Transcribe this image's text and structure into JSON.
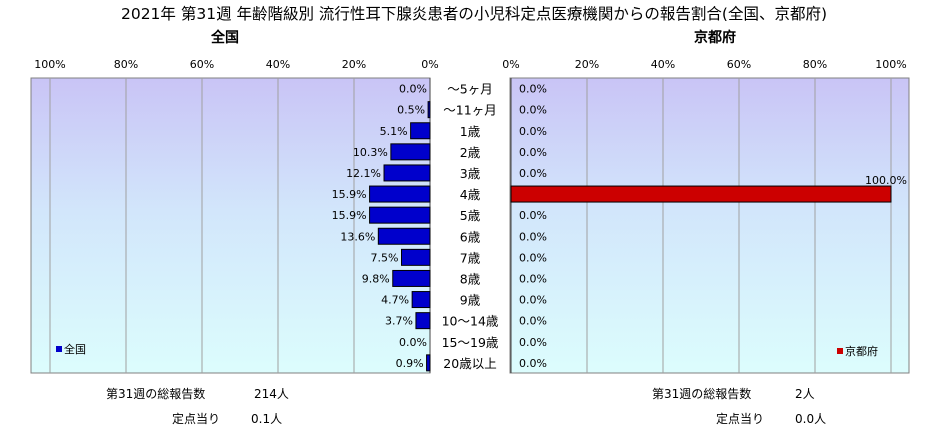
{
  "title": "2021年 第31週 年齢階級別 流行性耳下腺炎患者の小児科定点医療機関からの報告割合(全国、京都府)",
  "chart_data": [
    {
      "type": "bar",
      "orientation": "horizontal-reversed",
      "title": "全国",
      "legend": "全国",
      "legend_position": "bottom-left",
      "color": "#0000cc",
      "xlim": [
        0,
        100
      ],
      "tick_labels": [
        "100%",
        "80%",
        "60%",
        "40%",
        "20%",
        "0%"
      ],
      "categories": [
        "～5ヶ月",
        "～11ヶ月",
        "1歳",
        "2歳",
        "3歳",
        "4歳",
        "5歳",
        "6歳",
        "7歳",
        "8歳",
        "9歳",
        "10～14歳",
        "15～19歳",
        "20歳以上"
      ],
      "values": [
        0.0,
        0.5,
        5.1,
        10.3,
        12.1,
        15.9,
        15.9,
        13.6,
        7.5,
        9.8,
        4.7,
        3.7,
        0.0,
        0.9
      ],
      "data_labels": [
        "0.0%",
        "0.5%",
        "5.1%",
        "10.3%",
        "12.1%",
        "15.9%",
        "15.9%",
        "13.6%",
        "7.5%",
        "9.8%",
        "4.7%",
        "3.7%",
        "0.0%",
        "0.9%"
      ],
      "grid": true,
      "footer": [
        {
          "label": "第31週の総報告数",
          "value": "214人"
        },
        {
          "label": "定点当り",
          "value": "0.1人"
        }
      ]
    },
    {
      "type": "bar",
      "orientation": "horizontal",
      "title": "京都府",
      "legend": "京都府",
      "legend_position": "bottom-right",
      "color": "#cc0000",
      "xlim": [
        0,
        100
      ],
      "tick_labels": [
        "0%",
        "20%",
        "40%",
        "60%",
        "80%",
        "100%"
      ],
      "categories": [
        "～5ヶ月",
        "～11ヶ月",
        "1歳",
        "2歳",
        "3歳",
        "4歳",
        "5歳",
        "6歳",
        "7歳",
        "8歳",
        "9歳",
        "10～14歳",
        "15～19歳",
        "20歳以上"
      ],
      "values": [
        0.0,
        0.0,
        0.0,
        0.0,
        0.0,
        100.0,
        0.0,
        0.0,
        0.0,
        0.0,
        0.0,
        0.0,
        0.0,
        0.0
      ],
      "data_labels": [
        "0.0%",
        "0.0%",
        "0.0%",
        "0.0%",
        "0.0%",
        "100.0%",
        "0.0%",
        "0.0%",
        "0.0%",
        "0.0%",
        "0.0%",
        "0.0%",
        "0.0%",
        "0.0%"
      ],
      "grid": true,
      "footer": [
        {
          "label": "第31週の総報告数",
          "value": "2人"
        },
        {
          "label": "定点当り",
          "value": "0.0人"
        }
      ]
    }
  ]
}
